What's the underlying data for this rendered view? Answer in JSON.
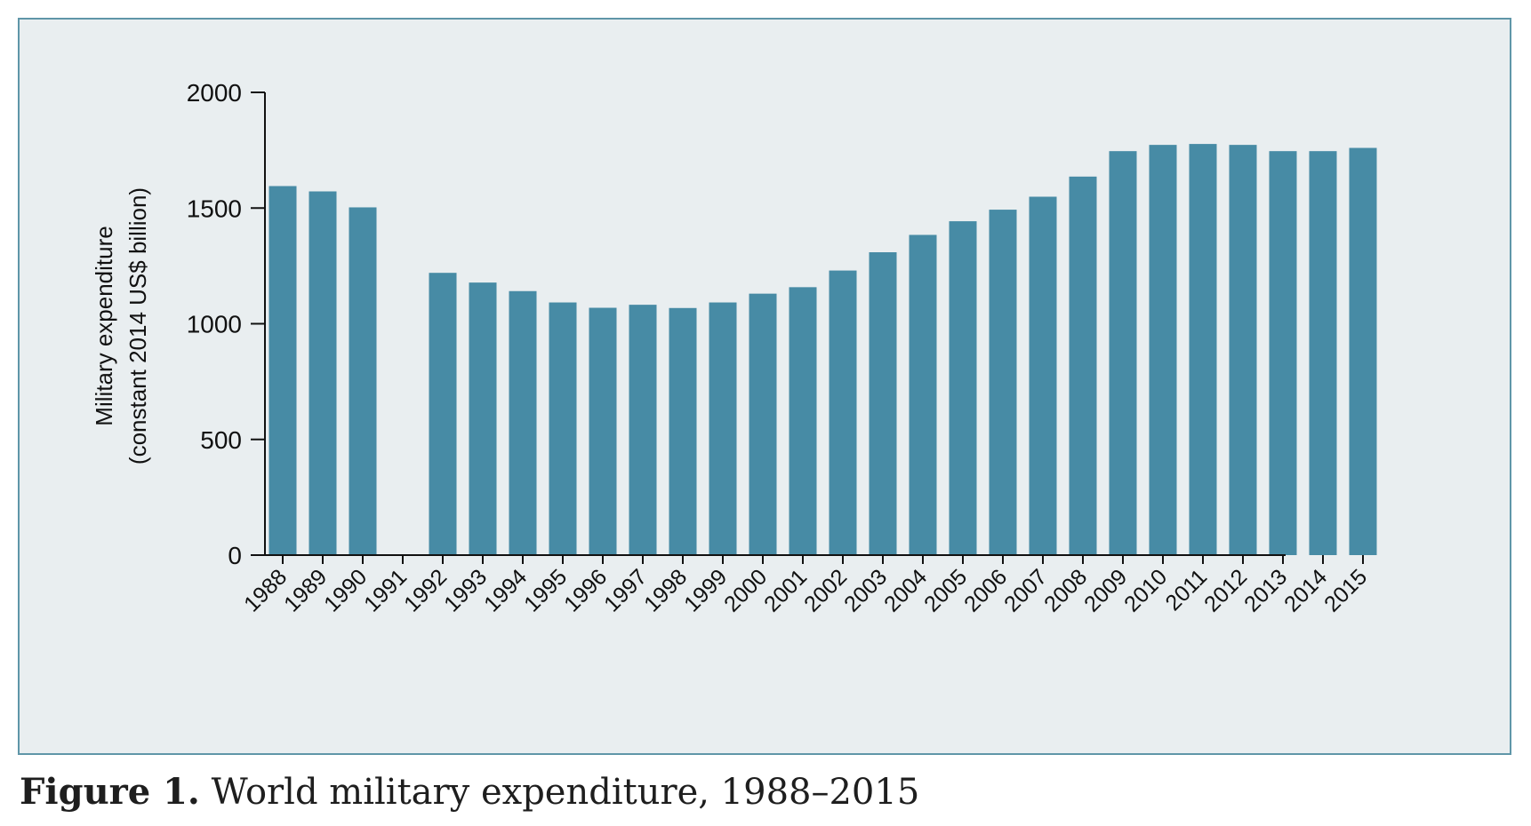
{
  "caption": {
    "label": "Figure 1.",
    "text": "World military expenditure, 1988–2015"
  },
  "colors": {
    "bar": "#478ba5",
    "panel_background": "#e9eef0",
    "panel_border": "#5f96a8",
    "axis": "#111111"
  },
  "chart_data": {
    "type": "bar",
    "title": "",
    "xlabel": "",
    "ylabel": [
      "Military expenditure",
      "(constant 2014 US$ billion)"
    ],
    "ylim": [
      0,
      2000
    ],
    "yticks": [
      0,
      500,
      1000,
      1500,
      2000
    ],
    "grid": false,
    "legend": "none",
    "categories": [
      "1988",
      "1989",
      "1990",
      "1991",
      "1992",
      "1993",
      "1994",
      "1995",
      "1996",
      "1997",
      "1998",
      "1999",
      "2000",
      "2001",
      "2002",
      "2003",
      "2004",
      "2005",
      "2006",
      "2007",
      "2008",
      "2009",
      "2010",
      "2011",
      "2012",
      "2013",
      "2014",
      "2015"
    ],
    "values": [
      1595,
      1572,
      1503,
      null,
      1220,
      1178,
      1141,
      1092,
      1069,
      1082,
      1068,
      1092,
      1130,
      1158,
      1230,
      1309,
      1384,
      1443,
      1493,
      1549,
      1636,
      1746,
      1773,
      1777,
      1773,
      1746,
      1746,
      1760
    ]
  }
}
